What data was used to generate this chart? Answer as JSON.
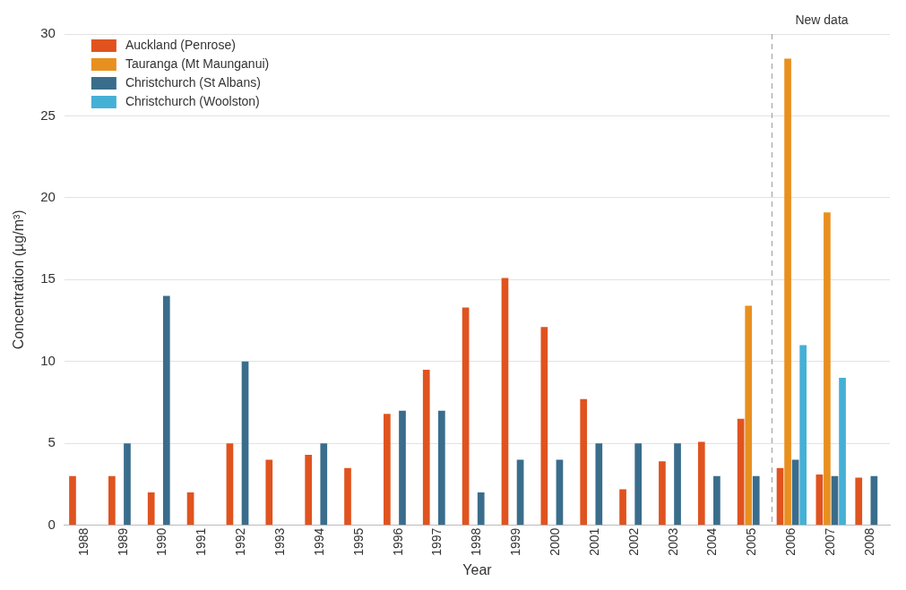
{
  "chart_data": {
    "type": "bar",
    "xlabel": "Year",
    "ylabel": "Concentration (µg/m³)",
    "x": [
      1988,
      1989,
      1990,
      1991,
      1992,
      1993,
      1994,
      1995,
      1996,
      1997,
      1998,
      1999,
      2000,
      2001,
      2002,
      2003,
      2004,
      2005,
      2006,
      2007,
      2008
    ],
    "xlim": [
      1987.5,
      2008.5
    ],
    "xticks": [
      1988,
      1989,
      1990,
      1991,
      1992,
      1993,
      1994,
      1995,
      1996,
      1997,
      1998,
      1999,
      2000,
      2001,
      2002,
      2003,
      2004,
      2005,
      2006,
      2007,
      2008
    ],
    "series": [
      {
        "name": "Auckland (Penrose)",
        "color": "#e0531f",
        "values": [
          3,
          3,
          2,
          2,
          5,
          4,
          4.3,
          3.5,
          6.8,
          9.5,
          13.3,
          15.1,
          12.1,
          7.7,
          2.2,
          3.9,
          5.1,
          6.5,
          3.5,
          3.1,
          2.9
        ]
      },
      {
        "name": "Tauranga (Mt Maunganui)",
        "color": "#e8901f",
        "values": [
          null,
          null,
          null,
          null,
          null,
          null,
          null,
          null,
          null,
          null,
          null,
          null,
          null,
          null,
          null,
          null,
          null,
          13.4,
          28.5,
          19.1,
          null
        ]
      },
      {
        "name": "Christchurch (St Albans)",
        "color": "#3a6d8c",
        "values": [
          null,
          5,
          14,
          null,
          10,
          null,
          5,
          null,
          7,
          7,
          2,
          4,
          4,
          5,
          5,
          5,
          3,
          3,
          4,
          3,
          3
        ]
      },
      {
        "name": "Christchurch (Woolston)",
        "color": "#45b0d6",
        "values": [
          null,
          null,
          null,
          null,
          null,
          null,
          null,
          null,
          null,
          null,
          null,
          null,
          null,
          null,
          null,
          null,
          null,
          null,
          11,
          9,
          null
        ]
      }
    ],
    "ylim": [
      0,
      30
    ],
    "yticks": [
      0,
      5,
      10,
      15,
      20,
      25,
      30
    ],
    "grid": "y",
    "legend": "top left",
    "ref_lines": [
      {
        "axis": "x",
        "value": 2005.5,
        "label": "New data",
        "color": "#999999",
        "line_style": "dashed"
      }
    ]
  }
}
